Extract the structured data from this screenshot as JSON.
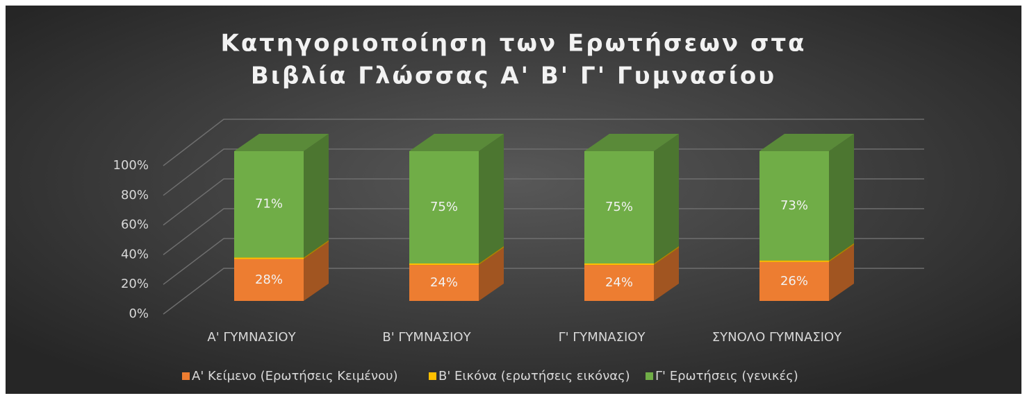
{
  "chart_data": {
    "type": "bar3d_stacked",
    "title": [
      "Κατηγοριοποίηση των Ερωτήσεων στα",
      "Βιβλία Γλώσσας Α' Β' Γ' Γυμνασίου"
    ],
    "categories": [
      "Α' ΓΥΜΝΑΣΙΟΥ",
      "Β' ΓΥΜΝΑΣΙΟΥ",
      "Γ' ΓΥΜΝΑΣΙΟΥ",
      "ΣΥΝΟΛΟ ΓΥΜΝΑΣΙΟΥ"
    ],
    "series": [
      {
        "name": "Α' Κείμενο (Ερωτήσεις Κειμένου)",
        "color": "#ed7d31",
        "values": [
          28,
          24,
          24,
          26
        ],
        "value_labels": [
          "28%",
          "24%",
          "24%",
          "26%"
        ]
      },
      {
        "name": "Β' Εικόνα (ερωτήσεις εικόνας)",
        "color": "#ffc000",
        "values": [
          1,
          1,
          1,
          1
        ]
      },
      {
        "name": "Γ' Ερωτήσεις (γενικές)",
        "color": "#70ad47",
        "values": [
          71,
          75,
          75,
          73
        ],
        "value_labels": [
          "71%",
          "75%",
          "75%",
          "73%"
        ]
      }
    ],
    "ylim": [
      0,
      100
    ],
    "yticks": [
      {
        "value": 0,
        "label": "0%"
      },
      {
        "value": 20,
        "label": "20%"
      },
      {
        "value": 40,
        "label": "40%"
      },
      {
        "value": 60,
        "label": "60%"
      },
      {
        "value": 80,
        "label": "80%"
      },
      {
        "value": 100,
        "label": "100%"
      }
    ],
    "grid": true,
    "legend": "bottom"
  }
}
